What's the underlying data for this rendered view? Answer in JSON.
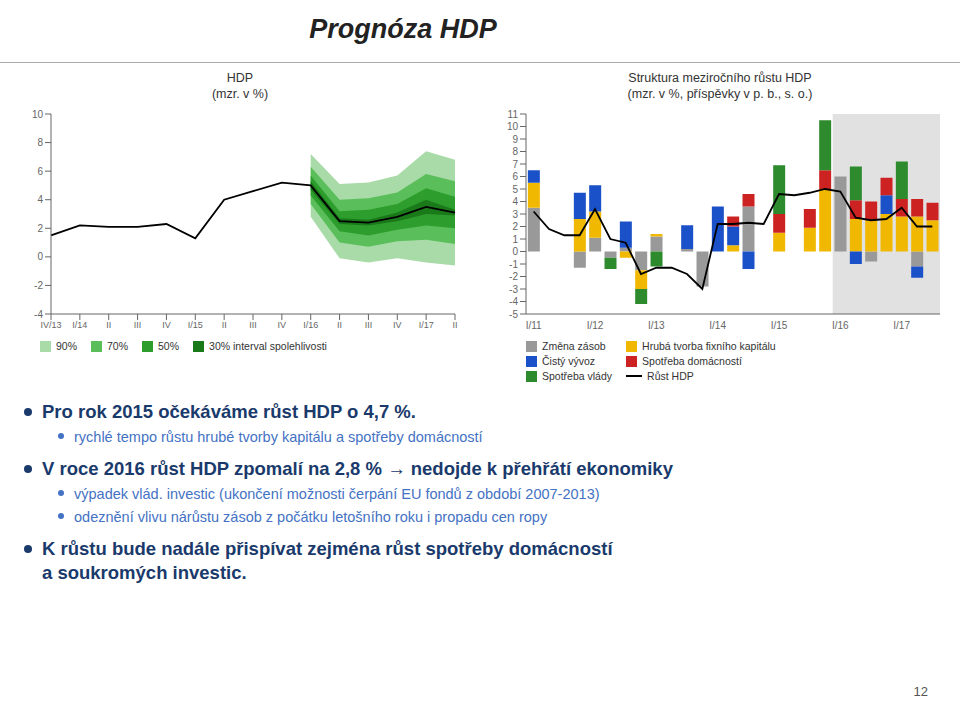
{
  "title": "Prognóza HDP",
  "page_number": "12",
  "annotations": [
    {
      "text": "Pro rok 2015 očekáváme růst HDP o 4,7 %.",
      "color": "#1a3a6c",
      "items": [
        {
          "text": "rychlé tempo růstu hrubé tvorby kapitálu a spotřeby domácností",
          "color": "#4472c4"
        }
      ]
    },
    {
      "text": "V roce 2016 růst HDP zpomalí na 2,8 % → nedojde k přehřátí ekonomiky",
      "color": "#1a3a6c",
      "items": [
        {
          "text": "výpadek vlád. investic (ukončení možnosti čerpání EU fondů z období 2007-2013)",
          "color": "#4472c4"
        },
        {
          "text": "odeznění vlivu nárůstu zásob z počátku letošního roku i propadu cen ropy",
          "color": "#4472c4"
        }
      ]
    },
    {
      "text": "K růstu bude nadále přispívat zejména růst spotřeby domácností\na soukromých investic.",
      "color": "#1a3a6c",
      "items": []
    }
  ],
  "chart_data": [
    {
      "type": "line",
      "title": "HDP",
      "subtitle": "(mzr. v %)",
      "categories": [
        "IV/13",
        "I/14",
        "II",
        "III",
        "IV",
        "I/15",
        "II",
        "III",
        "IV",
        "I/16",
        "II",
        "III",
        "IV",
        "I/17",
        "II"
      ],
      "series": [
        {
          "name": "90%",
          "type": "area",
          "color": "#a8dba8",
          "lo": [
            null,
            null,
            null,
            null,
            null,
            null,
            null,
            null,
            null,
            2.8,
            -0.1,
            -0.4,
            -0.1,
            -0.4,
            -0.6
          ],
          "hi": [
            null,
            null,
            null,
            null,
            null,
            null,
            null,
            null,
            null,
            7.2,
            5.1,
            5.2,
            5.7,
            7.4,
            6.8
          ]
        },
        {
          "name": "70%",
          "type": "area",
          "color": "#5abf5a",
          "lo": [
            null,
            null,
            null,
            null,
            null,
            null,
            null,
            null,
            null,
            3.7,
            1.0,
            0.7,
            1.1,
            1.2,
            0.9
          ],
          "hi": [
            null,
            null,
            null,
            null,
            null,
            null,
            null,
            null,
            null,
            6.3,
            4.0,
            4.1,
            4.5,
            5.8,
            5.3
          ]
        },
        {
          "name": "50%",
          "type": "area",
          "color": "#2d9e2d",
          "lo": [
            null,
            null,
            null,
            null,
            null,
            null,
            null,
            null,
            null,
            4.3,
            1.8,
            1.5,
            1.9,
            2.2,
            2.0
          ],
          "hi": [
            null,
            null,
            null,
            null,
            null,
            null,
            null,
            null,
            null,
            5.7,
            3.2,
            3.3,
            3.7,
            4.8,
            4.2
          ]
        },
        {
          "name": "30% interval spolehlivosti",
          "type": "area",
          "color": "#1a7a1a",
          "lo": [
            null,
            null,
            null,
            null,
            null,
            null,
            null,
            null,
            null,
            4.7,
            2.3,
            2.2,
            2.5,
            3.0,
            2.9
          ],
          "hi": [
            null,
            null,
            null,
            null,
            null,
            null,
            null,
            null,
            null,
            5.3,
            2.7,
            2.6,
            3.1,
            4.0,
            3.3
          ]
        },
        {
          "type": "line",
          "color": "#000000",
          "values": [
            1.5,
            2.2,
            2.1,
            2.1,
            2.3,
            1.3,
            4.0,
            4.6,
            5.2,
            5.0,
            2.5,
            2.4,
            2.8,
            3.5,
            3.1
          ]
        }
      ],
      "ylim": [
        -4,
        10
      ],
      "yticks": [
        -4,
        -2,
        0,
        2,
        4,
        6,
        8,
        10
      ],
      "grid": false,
      "legend": "bottom"
    },
    {
      "type": "bar",
      "title": "Struktura meziročního růstu HDP",
      "subtitle": "(mzr. v %, příspěvky v p. b., s. o.)",
      "stacked": true,
      "categories": [
        "I/11",
        null,
        null,
        null,
        "I/12",
        null,
        null,
        null,
        "I/13",
        null,
        null,
        null,
        "I/14",
        null,
        null,
        null,
        "I/15",
        null,
        null,
        null,
        "I/16",
        null,
        null,
        null,
        "I/17",
        null,
        null
      ],
      "forecast_from": "I/16",
      "forecast_color": "#c8c8c8",
      "series": [
        {
          "name": "Změna zásob",
          "type": "bar",
          "color": "#999999",
          "values": [
            3.5,
            0.0,
            0.0,
            -1.3,
            1.1,
            -0.5,
            0.3,
            -1.5,
            1.2,
            0.0,
            0.2,
            -2.8,
            0.0,
            0.0,
            3.6,
            0.0,
            0.0,
            0.0,
            0.0,
            0.0,
            6.0,
            0.0,
            -0.8,
            0.0,
            0.0,
            -1.2,
            0.0
          ]
        },
        {
          "name": "Hrubá tvorba fixního kapitálu",
          "type": "bar",
          "color": "#f0b800",
          "values": [
            2.0,
            0.0,
            0.0,
            2.6,
            2.1,
            0.0,
            -0.5,
            -1.5,
            0.2,
            0.0,
            0.0,
            0.0,
            0.0,
            0.5,
            0.0,
            0.0,
            1.5,
            0.0,
            1.9,
            5.0,
            0.0,
            2.6,
            2.5,
            3.0,
            2.8,
            2.8,
            2.5
          ]
        },
        {
          "name": "Čistý vývoz",
          "type": "bar",
          "color": "#1a50c8",
          "values": [
            1.0,
            0.0,
            0.0,
            2.1,
            2.1,
            0.0,
            2.1,
            0.0,
            0.0,
            0.0,
            1.9,
            0.0,
            3.6,
            1.5,
            -1.4,
            0.0,
            0.0,
            0.0,
            0.0,
            0.0,
            0.0,
            -1.0,
            0.0,
            1.5,
            0.0,
            -0.9,
            0.0
          ]
        },
        {
          "name": "Spotřeba domácností",
          "type": "bar",
          "color": "#cc2222",
          "values": [
            0.0,
            0.0,
            0.0,
            0.0,
            0.0,
            0.0,
            0.0,
            0.0,
            0.0,
            0.0,
            0.0,
            0.0,
            0.0,
            0.8,
            1.0,
            0.0,
            1.5,
            0.0,
            1.5,
            1.5,
            0.0,
            1.5,
            1.5,
            1.4,
            1.4,
            1.4,
            1.4
          ]
        },
        {
          "name": "Spotřeba vlády",
          "type": "bar",
          "color": "#2d8a2d",
          "values": [
            0.0,
            0.0,
            0.0,
            0.0,
            0.0,
            -0.9,
            0.0,
            -1.2,
            -1.2,
            0.0,
            0.0,
            0.0,
            0.0,
            0.0,
            0.0,
            0.0,
            3.9,
            0.0,
            0.0,
            4.0,
            0.0,
            2.7,
            0.0,
            0.0,
            3.0,
            0.0,
            0.0
          ]
        },
        {
          "name": "Růst HDP",
          "type": "line",
          "color": "#000000",
          "values": [
            3.2,
            1.8,
            1.3,
            1.3,
            3.4,
            1.0,
            0.7,
            -1.8,
            -1.3,
            -1.3,
            -1.8,
            -3.0,
            2.2,
            2.2,
            2.3,
            2.2,
            4.6,
            4.5,
            4.7,
            5.0,
            4.8,
            2.7,
            2.5,
            2.6,
            3.5,
            2.0,
            2.0
          ]
        }
      ],
      "ylim": [
        -5,
        11
      ],
      "yticks": [
        -5,
        -4,
        -3,
        -2,
        -1,
        0,
        1,
        2,
        3,
        4,
        5,
        6,
        7,
        8,
        9,
        10,
        11
      ],
      "grid": false,
      "legend": "bottom"
    }
  ]
}
